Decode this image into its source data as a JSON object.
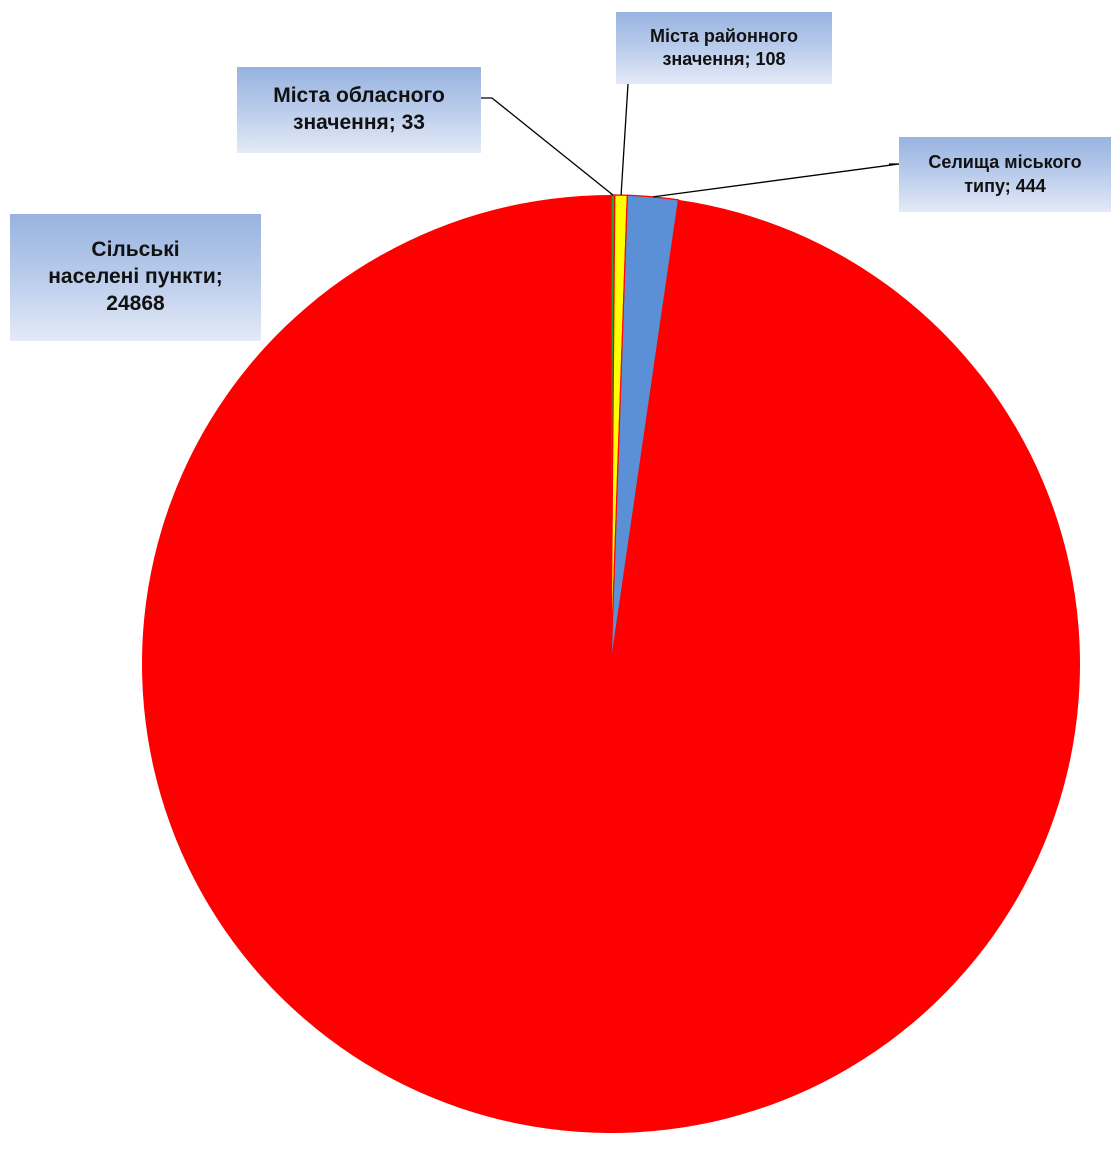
{
  "chart_data": {
    "type": "pie",
    "categories": [
      "Міста обласного значення",
      "Міста районного значення",
      "Селища міського типу",
      "Сільські населені пункти"
    ],
    "values": [
      33,
      108,
      444,
      24868
    ],
    "colors": [
      "#2e9e2e",
      "#ffff00",
      "#5b8fd6",
      "#ff0000"
    ],
    "slice_border_color": "#ff0000",
    "leader_line_color": "#000000",
    "label_fill": [
      "#98b3e0",
      "#e3eaf7"
    ],
    "legend": "none",
    "start_angle_deg": 0,
    "direction": "clockwise",
    "labels": [
      {
        "lines": [
          "Міста обласного",
          "значення; 33"
        ]
      },
      {
        "lines": [
          "Міста районного",
          "значення; 108"
        ]
      },
      {
        "lines": [
          "Селища міського",
          "типу; 444"
        ]
      },
      {
        "lines": [
          "Сільські",
          "населені пункти;",
          "24868"
        ]
      }
    ]
  }
}
